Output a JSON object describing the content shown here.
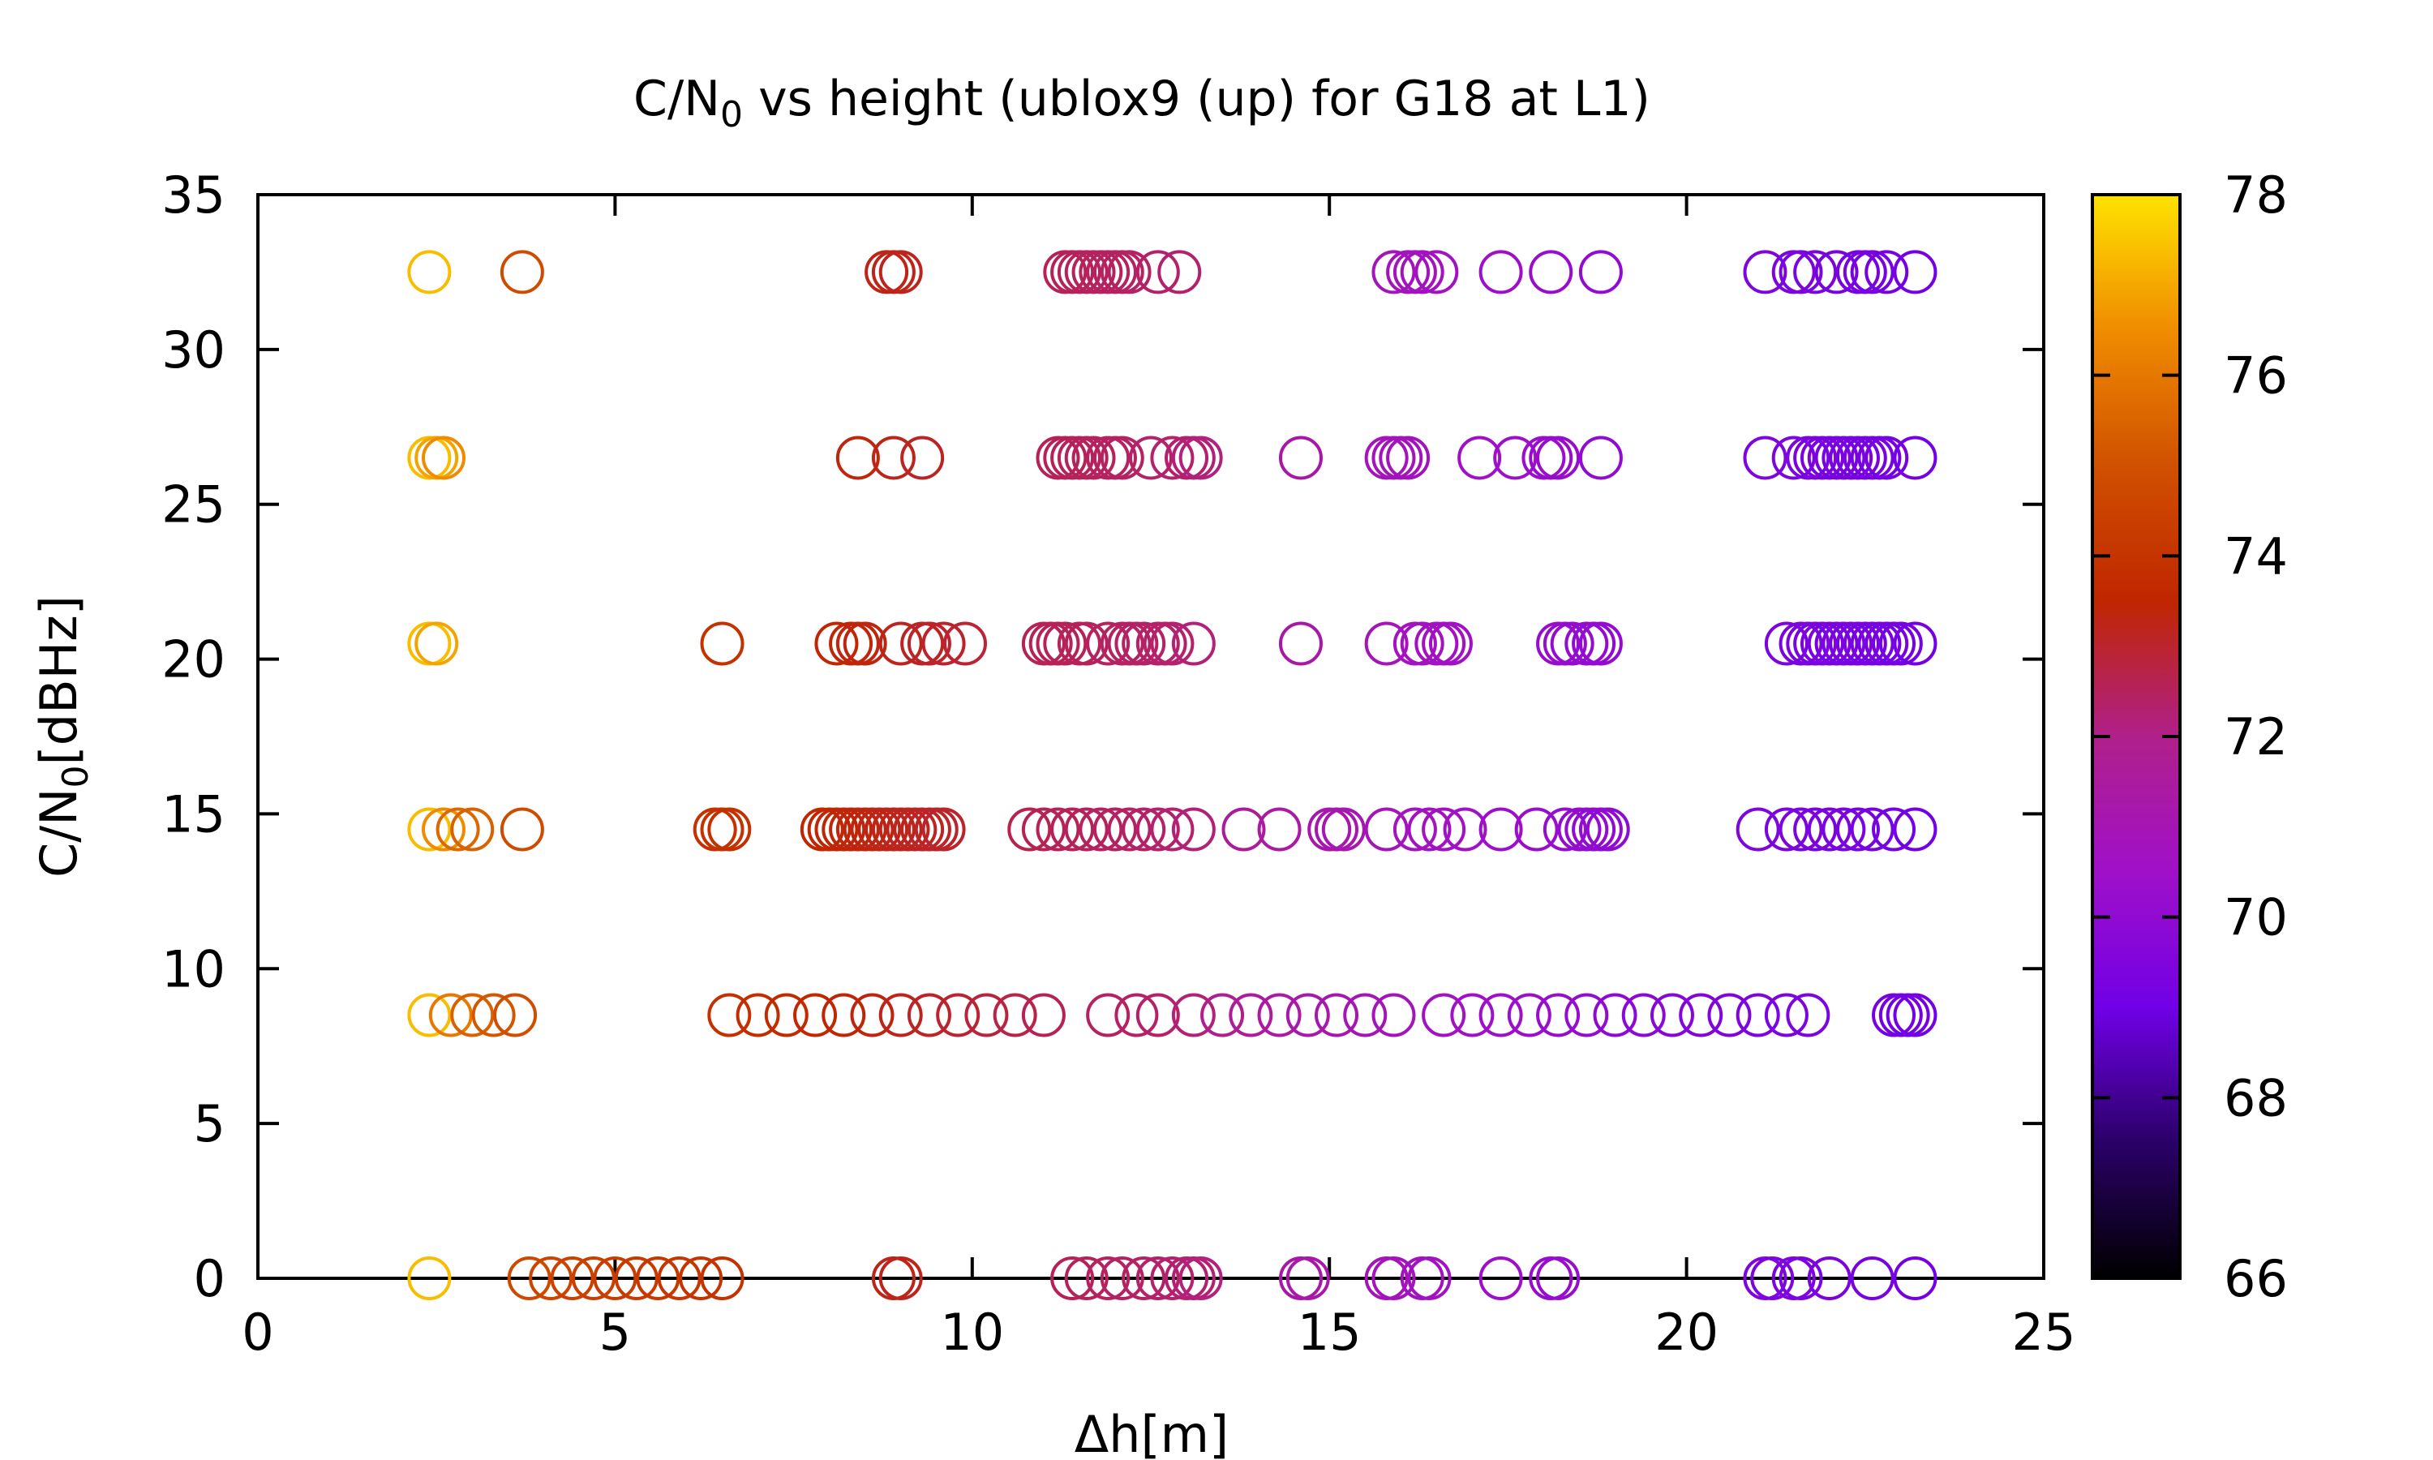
{
  "chart_data": {
    "type": "scatter",
    "title": "C/N0 vs height (ublox9 (up) for G18 at L1)",
    "title_parts": {
      "prefix": "C/N",
      "subscript": "0",
      "suffix": " vs height (ublox9 (up) for G18 at L1)"
    },
    "xlabel": "Δh[m]",
    "ylabel": "C/N0[dBHz]",
    "ylabel_parts": {
      "prefix": "C/N",
      "subscript": "0",
      "suffix": "[dBHz]"
    },
    "xlim": [
      0,
      25
    ],
    "ylim": [
      0,
      35
    ],
    "x_ticks": [
      0,
      5,
      10,
      15,
      20,
      25
    ],
    "y_ticks": [
      0,
      5,
      10,
      15,
      20,
      25,
      30,
      35
    ],
    "x_tick_labels": [
      "0",
      "5",
      "10",
      "15",
      "20",
      "25"
    ],
    "y_tick_labels": [
      "0",
      "5",
      "10",
      "15",
      "20",
      "25",
      "30",
      "35"
    ],
    "colorbar": {
      "range": [
        66,
        78
      ],
      "ticks": [
        66,
        68,
        70,
        72,
        74,
        76,
        78
      ],
      "tick_labels": [
        "66",
        "68",
        "70",
        "72",
        "74",
        "76",
        "78"
      ],
      "palette": [
        "#000000",
        "#2a0068",
        "#7000e6",
        "#a010c8",
        "#b0208a",
        "#c02600",
        "#d05000",
        "#f08c00",
        "#ffe200"
      ]
    },
    "grid": false,
    "legend": "none",
    "marker": "open-circle",
    "levels": [
      {
        "y": 32.5,
        "x": [
          2.4,
          3.7,
          8.8,
          8.9,
          9.0,
          11.3,
          11.4,
          11.5,
          11.6,
          11.7,
          11.8,
          11.9,
          12.0,
          12.1,
          12.2,
          12.6,
          12.9,
          15.9,
          16.1,
          16.2,
          16.3,
          16.5,
          17.4,
          18.1,
          18.8,
          21.1,
          21.5,
          21.6,
          21.8,
          22.1,
          22.4,
          22.5,
          22.6,
          22.8,
          23.2
        ]
      },
      {
        "y": 26.5,
        "x": [
          2.4,
          2.5,
          2.6,
          8.4,
          8.9,
          9.3,
          11.2,
          11.3,
          11.4,
          11.5,
          11.6,
          11.7,
          11.9,
          12.0,
          12.1,
          12.5,
          12.8,
          13.0,
          13.1,
          13.2,
          14.6,
          15.8,
          15.9,
          16.0,
          16.1,
          17.1,
          17.6,
          18.0,
          18.1,
          18.2,
          18.8,
          21.1,
          21.5,
          21.7,
          21.8,
          21.9,
          22.0,
          22.1,
          22.2,
          22.3,
          22.4,
          22.5,
          22.6,
          22.7,
          22.8,
          23.2
        ]
      },
      {
        "y": 20.5,
        "x": [
          2.4,
          2.5,
          6.5,
          8.1,
          8.3,
          8.4,
          8.5,
          9.0,
          9.3,
          9.4,
          9.6,
          9.9,
          11.0,
          11.1,
          11.2,
          11.3,
          11.5,
          11.6,
          11.9,
          12.1,
          12.2,
          12.3,
          12.4,
          12.6,
          12.7,
          12.8,
          13.1,
          14.6,
          15.8,
          16.2,
          16.3,
          16.5,
          16.6,
          16.7,
          18.2,
          18.3,
          18.4,
          18.6,
          18.7,
          18.8,
          21.4,
          21.6,
          21.7,
          21.8,
          21.9,
          22.0,
          22.1,
          22.2,
          22.3,
          22.4,
          22.5,
          22.6,
          22.7,
          22.8,
          22.9,
          23.0,
          23.2
        ]
      },
      {
        "y": 14.5,
        "x": [
          2.4,
          2.6,
          2.8,
          3.0,
          3.7,
          6.4,
          6.5,
          6.6,
          7.9,
          8.0,
          8.1,
          8.2,
          8.3,
          8.4,
          8.5,
          8.6,
          8.7,
          8.8,
          8.9,
          9.0,
          9.1,
          9.2,
          9.3,
          9.4,
          9.5,
          9.6,
          10.8,
          11.0,
          11.2,
          11.4,
          11.6,
          11.8,
          12.0,
          12.2,
          12.4,
          12.6,
          12.8,
          13.1,
          13.8,
          14.3,
          15.0,
          15.1,
          15.2,
          15.8,
          16.2,
          16.4,
          16.6,
          16.9,
          17.4,
          17.9,
          18.3,
          18.5,
          18.6,
          18.7,
          18.8,
          18.9,
          21.0,
          21.4,
          21.6,
          21.8,
          22.0,
          22.2,
          22.4,
          22.6,
          22.9,
          23.2
        ]
      },
      {
        "y": 8.5,
        "x": [
          2.4,
          2.7,
          3.0,
          3.3,
          3.6,
          6.6,
          7.0,
          7.4,
          7.8,
          8.2,
          8.6,
          9.0,
          9.4,
          9.8,
          10.2,
          10.6,
          11.0,
          11.9,
          12.3,
          12.6,
          13.1,
          13.5,
          13.9,
          14.3,
          14.7,
          15.1,
          15.5,
          15.9,
          16.6,
          17.0,
          17.4,
          17.8,
          18.2,
          18.6,
          19.0,
          19.4,
          19.8,
          20.2,
          20.6,
          21.0,
          21.4,
          21.7,
          22.9,
          23.0,
          23.1,
          23.2
        ]
      },
      {
        "y": 0.0,
        "x": [
          2.4,
          3.8,
          4.1,
          4.4,
          4.7,
          5.0,
          5.3,
          5.6,
          5.9,
          6.2,
          6.5,
          8.9,
          9.0,
          11.4,
          11.6,
          11.9,
          12.1,
          12.4,
          12.6,
          12.8,
          13.0,
          13.1,
          13.2,
          14.6,
          14.7,
          15.8,
          15.9,
          16.3,
          16.4,
          17.4,
          18.1,
          18.2,
          21.1,
          21.2,
          21.5,
          21.6,
          22.0,
          22.6,
          23.2
        ]
      }
    ]
  }
}
